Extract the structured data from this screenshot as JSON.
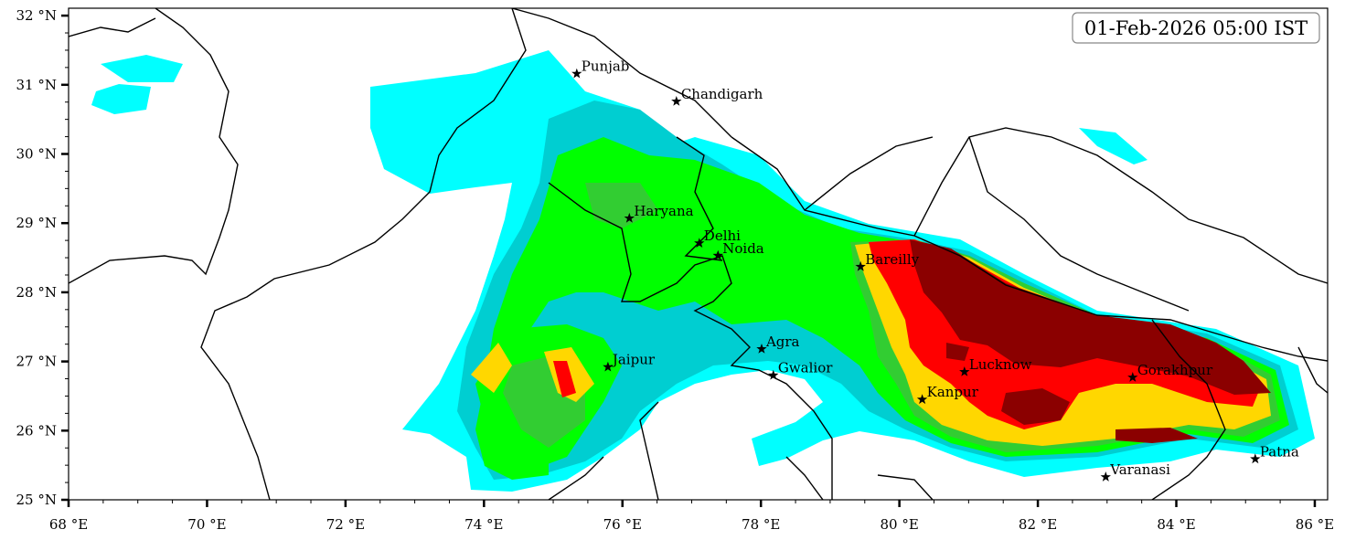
{
  "timestamp_label": "01-Feb-2026 05:00 IST",
  "colors": {
    "level1": "#00ffff",
    "level2": "#00ced1",
    "level3": "#00ff00",
    "level4": "#32cd32",
    "level5": "#ffd700",
    "level6": "#ff0000",
    "level7": "#8b0000",
    "boundary": "#000000"
  },
  "axes": {
    "lon_range": [
      68,
      86.2
    ],
    "lat_range": [
      25,
      32.1
    ],
    "x_ticks": [
      {
        "value": 68,
        "label": "68 °E"
      },
      {
        "value": 70,
        "label": "70 °E"
      },
      {
        "value": 72,
        "label": "72 °E"
      },
      {
        "value": 74,
        "label": "74 °E"
      },
      {
        "value": 76,
        "label": "76 °E"
      },
      {
        "value": 78,
        "label": "78 °E"
      },
      {
        "value": 80,
        "label": "80 °E"
      },
      {
        "value": 82,
        "label": "82 °E"
      },
      {
        "value": 84,
        "label": "84 °E"
      },
      {
        "value": 86,
        "label": "86 °E"
      }
    ],
    "y_ticks": [
      {
        "value": 25,
        "label": "25 °N"
      },
      {
        "value": 26,
        "label": "26 °N"
      },
      {
        "value": 27,
        "label": "27 °N"
      },
      {
        "value": 28,
        "label": "28 °N"
      },
      {
        "value": 29,
        "label": "29 °N"
      },
      {
        "value": 30,
        "label": "30 °N"
      },
      {
        "value": 31,
        "label": "31 °N"
      },
      {
        "value": 32,
        "label": "32 °N"
      }
    ]
  },
  "cities": [
    {
      "name": "Punjab",
      "lon": 75.34,
      "lat": 31.16
    },
    {
      "name": "Chandigarh",
      "lon": 76.78,
      "lat": 30.76
    },
    {
      "name": "Haryana",
      "lon": 76.1,
      "lat": 29.07
    },
    {
      "name": "Delhi",
      "lon": 77.11,
      "lat": 28.71
    },
    {
      "name": "Noida",
      "lon": 77.38,
      "lat": 28.53
    },
    {
      "name": "Bareilly",
      "lon": 79.44,
      "lat": 28.37
    },
    {
      "name": "Agra",
      "lon": 78.01,
      "lat": 27.18
    },
    {
      "name": "Jaipur",
      "lon": 75.79,
      "lat": 26.92
    },
    {
      "name": "Gwalior",
      "lon": 78.18,
      "lat": 26.8
    },
    {
      "name": "Lucknow",
      "lon": 80.94,
      "lat": 26.85
    },
    {
      "name": "Kanpur",
      "lon": 80.33,
      "lat": 26.45
    },
    {
      "name": "Gorakhpur",
      "lon": 83.37,
      "lat": 26.77
    },
    {
      "name": "Patna",
      "lon": 85.14,
      "lat": 25.59
    },
    {
      "name": "Varanasi",
      "lon": 82.98,
      "lat": 25.33
    }
  ]
}
